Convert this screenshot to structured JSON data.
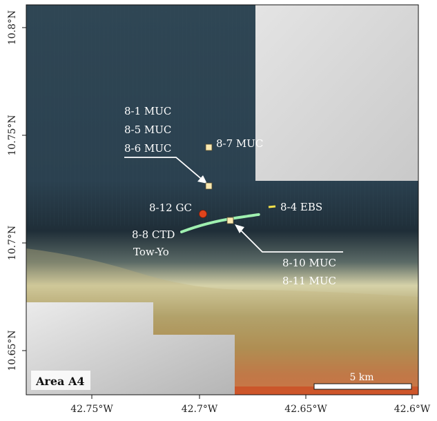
{
  "map": {
    "area_label": "Area A4",
    "scale_bar_label": "5 km",
    "lat_ticks": [
      "10.8°N",
      "10.75°N",
      "10.7°N",
      "10.65°N"
    ],
    "lon_ticks": [
      "42.75°W",
      "42.7°W",
      "42.65°W",
      "42.6°W"
    ]
  },
  "sites": {
    "group_1": [
      "8-1 MUC",
      "8-5 MUC",
      "8-6 MUC"
    ],
    "mc_8_7": "8-7 MUC",
    "gc_8_12": "8-12 GC",
    "ebs_8_4": "8-4 EBS",
    "ctd": [
      "8-8 CTD",
      "Tow-Yo"
    ],
    "group_2": [
      "8-10 MUC",
      "8-11 MUC"
    ]
  },
  "colors": {
    "deep_water": "#2a3f4c",
    "no_data": "#d9d9d9",
    "muc_marker": "#fbe9b0",
    "gc_marker": "#e0441c",
    "ebs_marker": "#f5e14a",
    "ctd_track": "#9ff0b0"
  }
}
